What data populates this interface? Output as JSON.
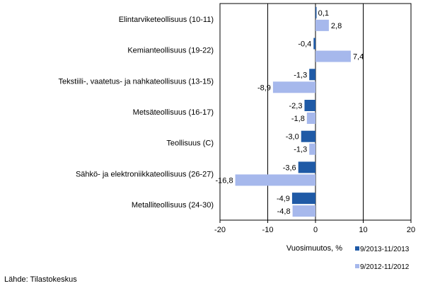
{
  "chart_data": {
    "type": "bar",
    "orientation": "horizontal",
    "categories": [
      "Elintarviketeollisuus (10-11)",
      "Kemianteollisuus (19-22)",
      "Tekstiili-, vaatetus- ja nahkateollisuus (13-15)",
      "Metsäteollisuus (16-17)",
      "Teollisuus (C)",
      "Sähkö- ja elektroniikkateollisuus (26-27)",
      "Metalliteollisuus (24-30)"
    ],
    "series": [
      {
        "name": "9/2013-11/2013",
        "color": "#1f5aa6",
        "values": [
          0.1,
          -0.4,
          -1.3,
          -2.3,
          -3.0,
          -3.6,
          -4.9
        ],
        "labels": [
          "0,1",
          "-0,4",
          "-1,3",
          "-2,3",
          "-3,0",
          "-3,6",
          "-4,9"
        ]
      },
      {
        "name": "9/2012-11/2012",
        "color": "#a6b8ec",
        "values": [
          2.8,
          7.4,
          -8.9,
          -1.8,
          -1.3,
          -16.8,
          -4.8
        ],
        "labels": [
          "2,8",
          "7,4",
          "-8,9",
          "-1,8",
          "-1,3",
          "-16,8",
          "-4,8"
        ]
      }
    ],
    "xlabel": "Vuosimuutos, %",
    "xlim": [
      -20,
      20
    ],
    "xticks": [
      -20,
      -10,
      0,
      10,
      20
    ],
    "grid": true,
    "legend_position": "bottom-right"
  },
  "source": "Lähde: Tilastokeskus"
}
